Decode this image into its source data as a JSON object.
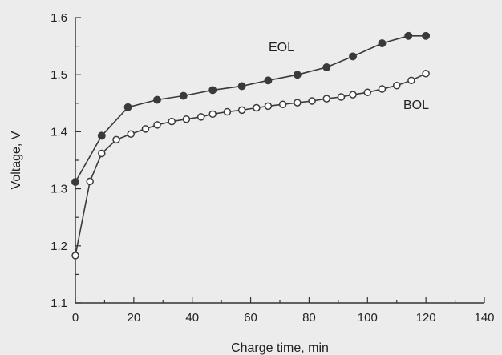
{
  "chart_data": {
    "type": "line",
    "title": "",
    "xlabel": "Charge time, min",
    "ylabel": "Voltage, V",
    "xlim": [
      0,
      140
    ],
    "ylim": [
      1.1,
      1.6
    ],
    "x_ticks": [
      0,
      20,
      40,
      60,
      80,
      100,
      120,
      140
    ],
    "y_ticks": [
      "1.1",
      "1.2",
      "1.3",
      "1.4",
      "1.5",
      "1.6"
    ],
    "grid": false,
    "legend": "none",
    "series": [
      {
        "name": "EOL",
        "marker": "filled-circle",
        "color": "#3a3a3a",
        "x": [
          0,
          9,
          18,
          28,
          37,
          47,
          57,
          66,
          76,
          86,
          95,
          105,
          114,
          120
        ],
        "y": [
          1.312,
          1.393,
          1.443,
          1.456,
          1.463,
          1.473,
          1.48,
          1.49,
          1.5,
          1.513,
          1.532,
          1.555,
          1.568,
          1.568
        ]
      },
      {
        "name": "BOL",
        "marker": "open-circle",
        "color": "#3a3a3a",
        "x": [
          0,
          5,
          9,
          14,
          19,
          24,
          28,
          33,
          38,
          43,
          47,
          52,
          57,
          62,
          66,
          71,
          76,
          81,
          86,
          91,
          95,
          100,
          105,
          110,
          115,
          120
        ],
        "y": [
          1.183,
          1.313,
          1.362,
          1.386,
          1.396,
          1.405,
          1.412,
          1.418,
          1.422,
          1.426,
          1.431,
          1.435,
          1.438,
          1.442,
          1.445,
          1.448,
          1.451,
          1.454,
          1.458,
          1.461,
          1.465,
          1.469,
          1.475,
          1.481,
          1.49,
          1.502
        ]
      }
    ]
  }
}
